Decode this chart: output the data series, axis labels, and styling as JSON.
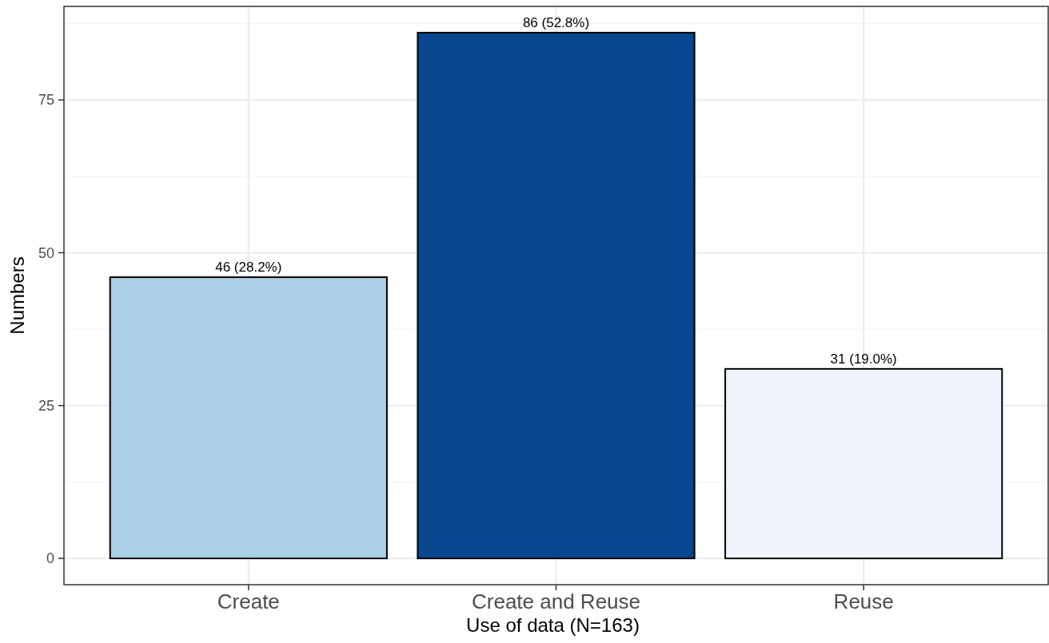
{
  "chart_data": {
    "type": "bar",
    "xlabel": "Use of data (N=163)",
    "ylabel": "Numbers",
    "categories": [
      "Create",
      "Create and Reuse",
      "Reuse"
    ],
    "values": [
      46,
      86,
      31
    ],
    "colors": [
      "#abcfe5",
      "#08468f",
      "#eef3fd"
    ],
    "value_labels": [
      "46 (28.2%)",
      "86 (52.8%)",
      "31 (19.0%)"
    ],
    "ylim": [
      -4.3,
      90.3
    ],
    "yticks": [
      0,
      25,
      50,
      75
    ],
    "grid": true
  }
}
